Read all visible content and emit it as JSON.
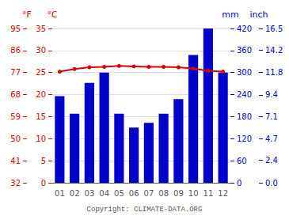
{
  "chart_data": {
    "type": "bar",
    "categories": [
      "01",
      "02",
      "03",
      "04",
      "05",
      "06",
      "07",
      "08",
      "09",
      "10",
      "11",
      "12"
    ],
    "series": [
      {
        "type": "bar",
        "axis": "y2",
        "color": "#0000cc",
        "values": [
          236,
          188,
          272,
          300,
          188,
          150,
          163,
          188,
          228,
          348,
          420,
          300
        ]
      },
      {
        "type": "line",
        "axis": "y",
        "color": "#dd0000",
        "marker": "circle",
        "values": [
          25.2,
          25.8,
          26.2,
          26.3,
          26.5,
          26.4,
          26.3,
          26.3,
          26.2,
          25.9,
          25.4,
          25.2
        ]
      }
    ],
    "y_label": "°C",
    "ylim": [
      0,
      35
    ],
    "yticks": [
      0,
      5,
      10,
      15,
      20,
      25,
      30,
      35
    ],
    "y2_label": "mm",
    "y2lim": [
      0,
      420
    ],
    "y2ticks": [
      0,
      60,
      120,
      180,
      240,
      300,
      360,
      420
    ],
    "y3_label": "°F",
    "y3lim": [
      32,
      95
    ],
    "y3ticks": [
      32,
      41,
      50,
      59,
      68,
      77,
      86,
      95
    ],
    "y4_label": "inch",
    "y4lim": [
      0,
      16.5
    ],
    "y4ticks": [
      {
        "value": 0,
        "label": "0.0"
      },
      2.4,
      4.7,
      7.1,
      9.4,
      11.8,
      14.2,
      16.5
    ],
    "annotation": "Copyright: CLIMATE-DATA.ORG",
    "grid": true
  }
}
